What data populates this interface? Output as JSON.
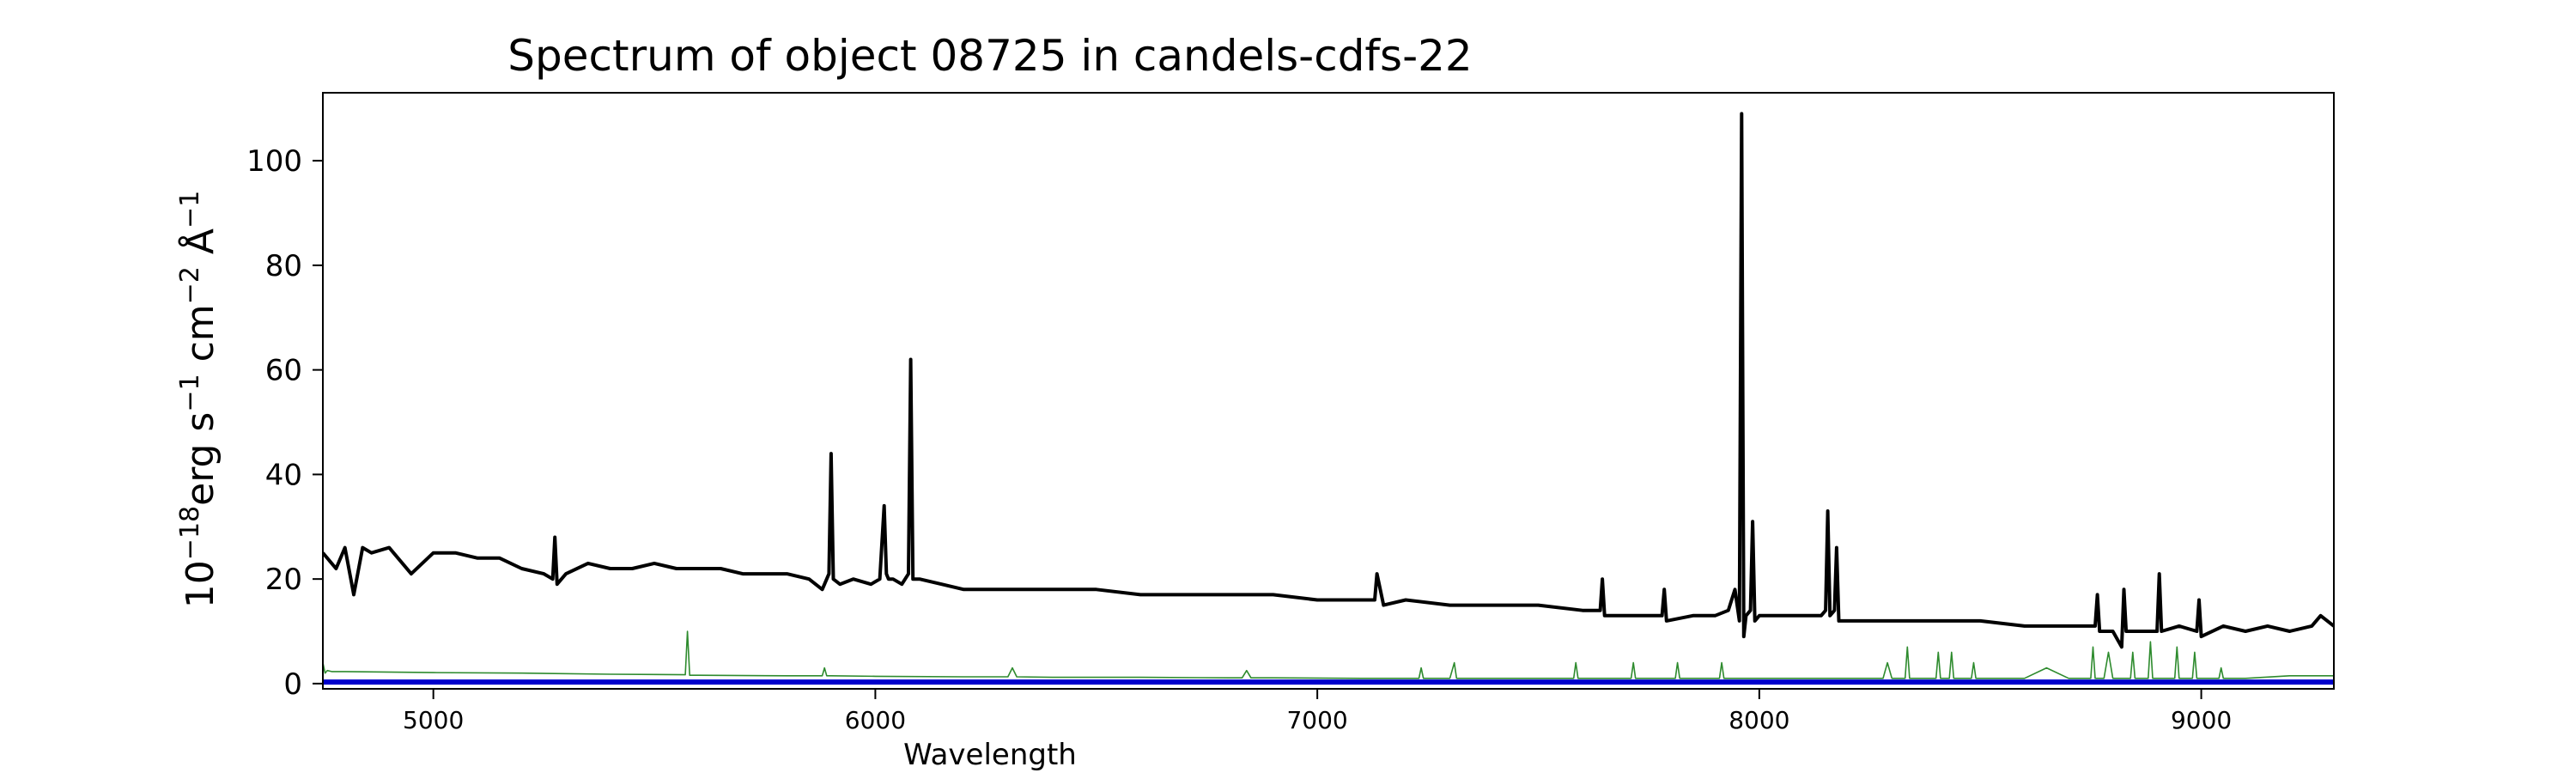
{
  "chart_data": {
    "type": "line",
    "title": "Spectrum of object 08725 in candels-cdfs-22",
    "xlabel": "Wavelength",
    "ylabel_base": "10",
    "ylabel_exp": "−18",
    "ylabel_units": [
      {
        "t": "erg s",
        "sup": "−1"
      },
      {
        "t": " cm",
        "sup": "−2"
      },
      {
        "t": " Å",
        "sup": "−1"
      }
    ],
    "xlim": [
      4750,
      9300
    ],
    "ylim": [
      -1,
      113
    ],
    "xticks": [
      5000,
      6000,
      7000,
      8000,
      9000
    ],
    "yticks": [
      0,
      20,
      40,
      60,
      80,
      100
    ],
    "grid": false,
    "series": [
      {
        "color": "#000000",
        "x": [
          4750,
          4780,
          4800,
          4820,
          4840,
          4860,
          4900,
          4950,
          5000,
          5050,
          5100,
          5150,
          5200,
          5250,
          5270,
          5275,
          5280,
          5300,
          5350,
          5400,
          5450,
          5500,
          5550,
          5600,
          5650,
          5700,
          5750,
          5800,
          5850,
          5880,
          5895,
          5900,
          5905,
          5920,
          5950,
          5990,
          6010,
          6020,
          6025,
          6030,
          6040,
          6060,
          6075,
          6080,
          6085,
          6100,
          6150,
          6200,
          6300,
          6400,
          6500,
          6600,
          6700,
          6800,
          6900,
          7000,
          7100,
          7130,
          7135,
          7150,
          7200,
          7300,
          7400,
          7500,
          7600,
          7640,
          7645,
          7650,
          7700,
          7780,
          7785,
          7790,
          7850,
          7900,
          7930,
          7945,
          7955,
          7960,
          7965,
          7970,
          7980,
          7985,
          7990,
          8000,
          8050,
          8100,
          8140,
          8150,
          8155,
          8160,
          8170,
          8175,
          8180,
          8200,
          8300,
          8400,
          8500,
          8600,
          8700,
          8760,
          8765,
          8770,
          8800,
          8820,
          8825,
          8830,
          8860,
          8900,
          8905,
          8910,
          8950,
          8990,
          8995,
          9000,
          9050,
          9100,
          9150,
          9200,
          9250,
          9270,
          9300
        ],
        "y": [
          25,
          22,
          26,
          17,
          26,
          25,
          26,
          21,
          25,
          25,
          24,
          24,
          22,
          21,
          20,
          28,
          19,
          21,
          23,
          22,
          22,
          23,
          22,
          22,
          22,
          21,
          21,
          21,
          20,
          18,
          21,
          44,
          20,
          19,
          20,
          19,
          20,
          34,
          21,
          20,
          20,
          19,
          21,
          62,
          20,
          20,
          19,
          18,
          18,
          18,
          18,
          17,
          17,
          17,
          17,
          16,
          16,
          16,
          21,
          15,
          16,
          15,
          15,
          15,
          14,
          14,
          20,
          13,
          13,
          13,
          18,
          12,
          13,
          13,
          14,
          18,
          12,
          109,
          9,
          13,
          14,
          31,
          12,
          13,
          13,
          13,
          13,
          14,
          33,
          13,
          14,
          26,
          12,
          12,
          12,
          12,
          12,
          11,
          11,
          11,
          17,
          10,
          10,
          7,
          18,
          10,
          10,
          10,
          21,
          10,
          11,
          10,
          16,
          9,
          11,
          10,
          11,
          10,
          11,
          13,
          11
        ]
      },
      {
        "color": "#2e8b2e",
        "x": [
          4750,
          4755,
          4760,
          4770,
          4800,
          5000,
          5200,
          5400,
          5570,
          5575,
          5580,
          5600,
          5800,
          5880,
          5885,
          5890,
          5900,
          6000,
          6200,
          6300,
          6310,
          6320,
          6400,
          6600,
          6800,
          6830,
          6840,
          6850,
          6900,
          7100,
          7230,
          7235,
          7240,
          7300,
          7310,
          7315,
          7320,
          7500,
          7580,
          7585,
          7590,
          7700,
          7710,
          7715,
          7720,
          7800,
          7810,
          7815,
          7820,
          7900,
          7910,
          7915,
          7920,
          8000,
          8200,
          8280,
          8290,
          8300,
          8330,
          8335,
          8340,
          8400,
          8405,
          8410,
          8430,
          8435,
          8440,
          8480,
          8485,
          8490,
          8600,
          8650,
          8700,
          8750,
          8755,
          8760,
          8780,
          8790,
          8800,
          8840,
          8845,
          8850,
          8880,
          8885,
          8890,
          8940,
          8945,
          8950,
          8980,
          8985,
          8990,
          9040,
          9045,
          9050,
          9100,
          9200,
          9300
        ],
        "y": [
          4,
          2,
          2.5,
          2.3,
          2.3,
          2.1,
          2,
          1.8,
          1.7,
          10,
          1.6,
          1.6,
          1.5,
          1.5,
          3,
          1.5,
          1.5,
          1.4,
          1.3,
          1.3,
          3,
          1.3,
          1.2,
          1.2,
          1.1,
          1.1,
          2.5,
          1.1,
          1.1,
          1,
          1,
          3,
          1,
          1,
          4,
          1,
          1,
          1,
          1,
          4,
          1,
          1,
          1,
          4,
          1,
          1,
          1,
          4,
          1,
          1,
          1,
          4,
          1,
          1,
          1,
          1,
          4,
          1,
          1,
          7,
          1,
          1,
          6,
          1,
          1,
          6,
          1,
          1,
          4,
          1,
          1,
          3,
          1,
          1,
          7,
          1,
          1,
          6,
          1,
          1,
          6,
          1,
          1,
          8,
          1,
          1,
          7,
          1,
          1,
          6,
          1,
          1,
          3,
          1,
          1,
          1.5,
          1.5
        ]
      },
      {
        "color": "#0000cc",
        "x": [
          4750,
          9300
        ],
        "y": [
          0.3,
          0.3
        ]
      }
    ]
  }
}
